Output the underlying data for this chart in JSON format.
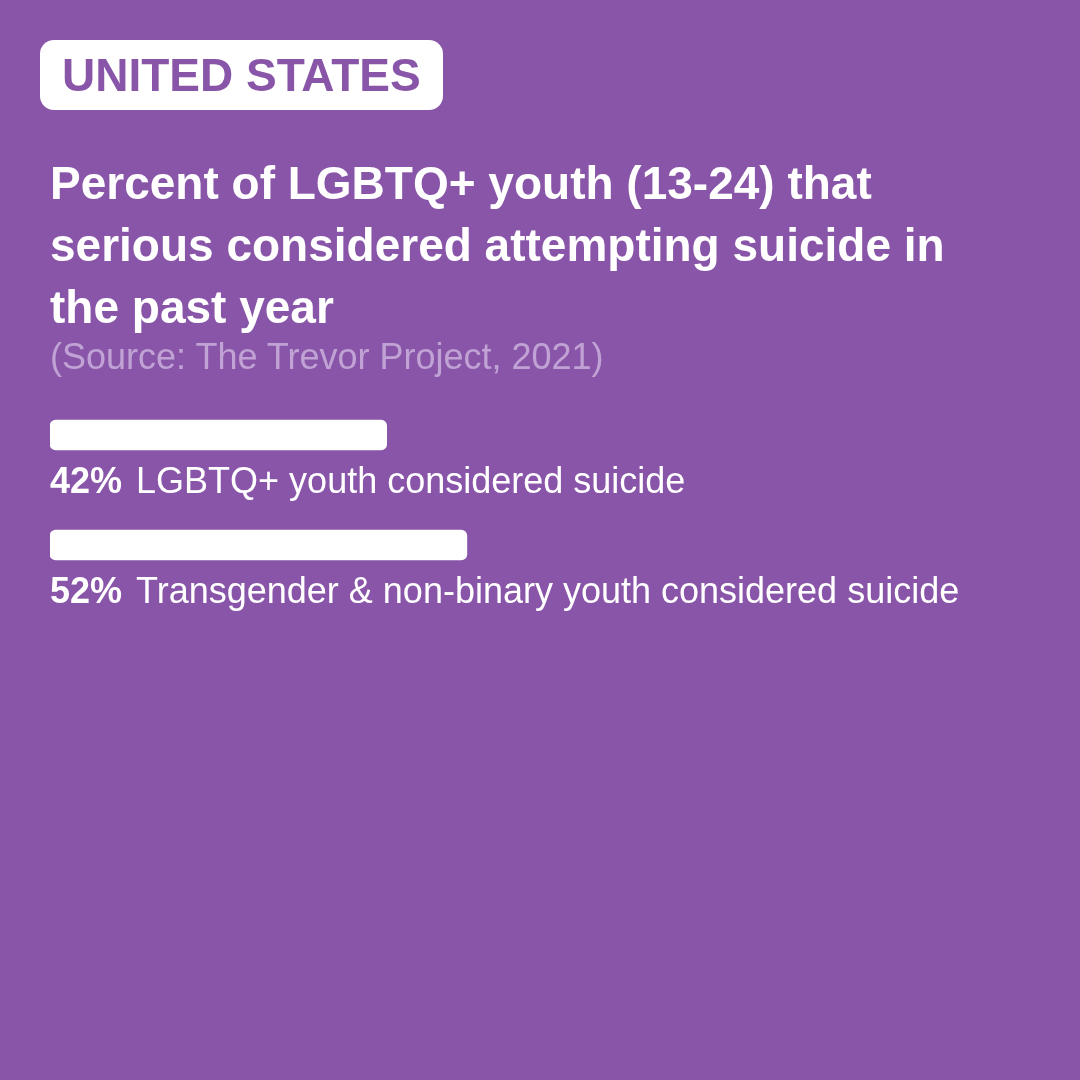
{
  "chart_data": {
    "type": "bar",
    "orientation": "horizontal",
    "subtitle": "UNITED STATES",
    "title": "Percent of LGBTQ+ youth (13-24) that serious considered attempting suicide in the past year",
    "annotations": [
      "(Source: The Trevor Project, 2021)"
    ],
    "categories": [
      "LGBTQ+ youth considered suicide",
      "Transgender & non-binary youth considered suicide"
    ],
    "values": [
      42,
      52
    ],
    "value_labels": [
      "42%",
      "52%"
    ],
    "color": "#ffffff"
  }
}
